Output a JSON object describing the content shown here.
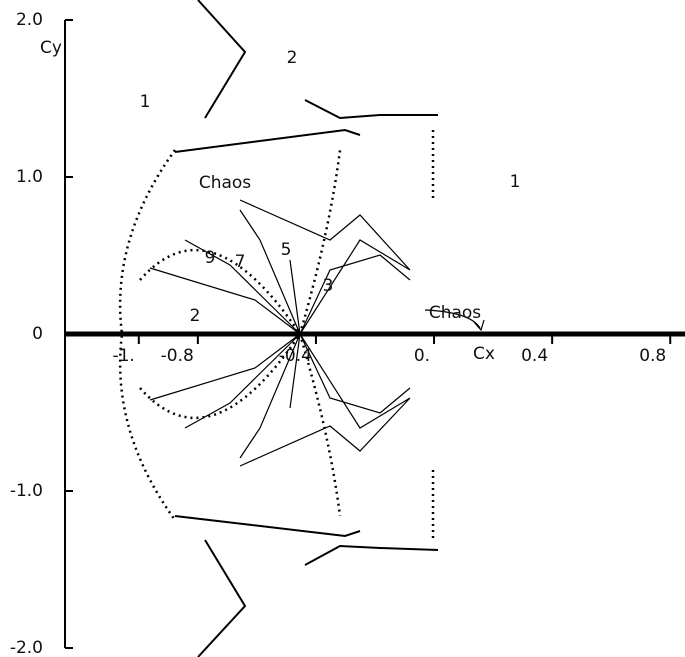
{
  "chart_data": {
    "type": "region-map",
    "x_label": "Cx",
    "y_label": "Cy",
    "xlim": [
      -1.25,
      0.85
    ],
    "ylim": [
      -2,
      2
    ],
    "xticks": [
      {
        "value": -1,
        "label": "-1."
      },
      -0.8,
      -0.4,
      {
        "value": 0,
        "label": "0."
      },
      0.4,
      0.8
    ],
    "yticks": [
      {
        "value": 2,
        "label": "2.0"
      },
      {
        "value": 1,
        "label": "1.0"
      },
      0,
      {
        "value": -1,
        "label": "-1.0"
      },
      {
        "value": -2,
        "label": "-2.0"
      }
    ],
    "annotations": [
      "2",
      "1",
      "Chaos",
      "1",
      "5",
      "9",
      "7",
      "3",
      "2",
      "Chaos"
    ],
    "color": "#000000"
  }
}
